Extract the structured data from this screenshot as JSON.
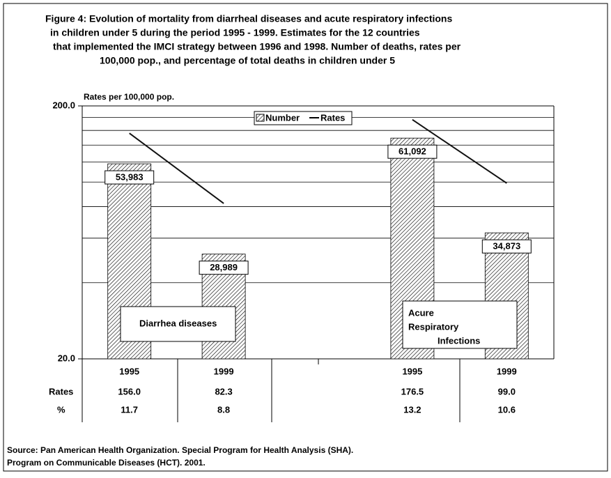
{
  "chart_data": {
    "type": "bar",
    "title": [
      "Figure 4: Evolution of mortality from diarrheal diseases and acute respiratory infections",
      "in children under 5 during the period 1995 - 1999. Estimates for the 12 countries",
      "that implemented the IMCI strategy between 1996 and 1998. Number of deaths, rates per",
      "100,000 pop., and percentage of total deaths in children under 5"
    ],
    "y_label": "Rates per 100,000 pop.",
    "categories": [
      "1995",
      "1999",
      null,
      "1995",
      "1999"
    ],
    "series": [
      {
        "name": "Number",
        "type": "bar",
        "color": "#000000",
        "axis": "y2",
        "values": [
          53983,
          28989,
          null,
          61092,
          34873
        ],
        "value_labels": [
          "53,983",
          "28,989",
          null,
          "61,092",
          "34,873"
        ]
      },
      {
        "name": "Rates",
        "type": "line",
        "color": "#111111",
        "values": [
          156.0,
          82.3,
          null,
          176.5,
          99.0
        ],
        "value_labels": [
          "156.0",
          "82.3",
          null,
          "176.5",
          "99.0"
        ]
      }
    ],
    "percent": {
      "label": "%",
      "values": [
        11.7,
        8.8,
        null,
        13.2,
        10.6
      ]
    },
    "log_y": true,
    "ylim": [
      20,
      200
    ],
    "yticks": [
      {
        "value": 20,
        "label": "20.0"
      },
      {
        "value": 200,
        "label": "200.0"
      }
    ],
    "minor_yticks": [
      40,
      60,
      80,
      100,
      120,
      140,
      160,
      180
    ],
    "y2lim": [
      0,
      70000
    ],
    "grid": true,
    "legend": "top",
    "annotations": [
      [
        "Diarrhea diseases"
      ],
      [
        "Acure",
        "Respiratory",
        "Infections"
      ]
    ],
    "source": [
      "Source: Pan American Health Organization. Special Program for Health Analysis (SHA).",
      "Program on Communicable Diseases (HCT). 2001."
    ]
  }
}
